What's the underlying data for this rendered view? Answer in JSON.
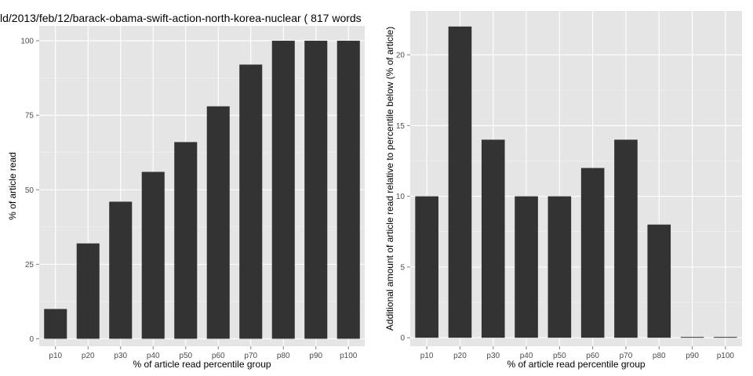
{
  "chart_data": [
    {
      "type": "bar",
      "title": "ld/2013/feb/12/barack-obama-swift-action-north-korea-nuclear ( 817 words",
      "xlabel": "% of article read percentile group",
      "ylabel": "% of article read",
      "categories": [
        "p10",
        "p20",
        "p30",
        "p40",
        "p50",
        "p60",
        "p70",
        "p80",
        "p90",
        "p100"
      ],
      "values": [
        10,
        32,
        46,
        56,
        66,
        78,
        92,
        100,
        100,
        100
      ],
      "yticks": [
        "0",
        "25",
        "50",
        "75",
        "100"
      ],
      "ylim": [
        -2.5,
        105
      ],
      "grid": true,
      "colors": {
        "panel": "#e5e5e5",
        "bar": "#333333",
        "grid_major": "#ffffff",
        "grid_minor": "#f2f2f2"
      }
    },
    {
      "type": "bar",
      "title": "",
      "xlabel": "% of article read percentile group",
      "ylabel": "Additional amount of article read relative to percentile below (% of article)",
      "categories": [
        "p10",
        "p20",
        "p30",
        "p40",
        "p50",
        "p60",
        "p70",
        "p80",
        "p90",
        "p100"
      ],
      "values": [
        10,
        22,
        14,
        10,
        10,
        12,
        14,
        8,
        0,
        0
      ],
      "yticks": [
        "0",
        "5",
        "10",
        "15",
        "20"
      ],
      "ylim": [
        -0.6,
        23.1
      ],
      "grid": true,
      "colors": {
        "panel": "#e5e5e5",
        "bar": "#333333",
        "grid_major": "#ffffff",
        "grid_minor": "#f2f2f2"
      }
    }
  ]
}
